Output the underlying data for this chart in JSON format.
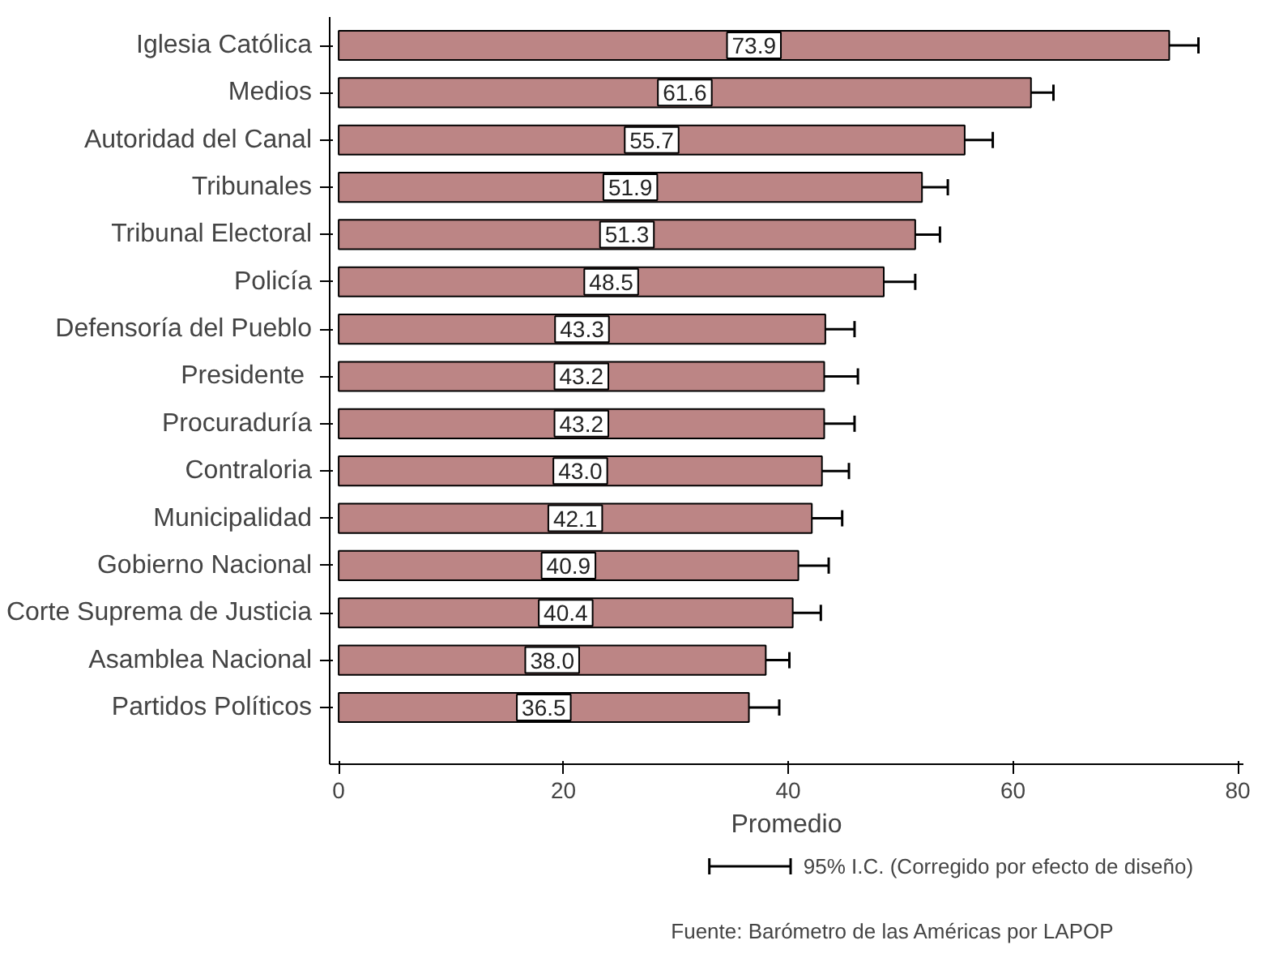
{
  "chart_data": {
    "type": "bar",
    "orientation": "horizontal",
    "xlabel": "Promedio",
    "categories": [
      "Iglesia Católica",
      "Medios",
      "Autoridad del Canal",
      "Tribunales",
      "Tribunal Electoral",
      "Policía",
      "Defensoría del Pueblo",
      "Presidente ",
      "Procuraduría",
      "Contraloria",
      "Municipalidad",
      "Gobierno Nacional",
      "Corte Suprema de Justicia",
      "Asamblea Nacional",
      "Partidos Políticos"
    ],
    "values": [
      73.9,
      61.6,
      55.7,
      51.9,
      51.3,
      48.5,
      43.3,
      43.2,
      43.2,
      43.0,
      42.1,
      40.9,
      40.4,
      38.0,
      36.5
    ],
    "errors": [
      2.6,
      2.0,
      2.5,
      2.3,
      2.2,
      2.8,
      2.6,
      3.0,
      2.7,
      2.4,
      2.7,
      2.7,
      2.5,
      2.1,
      2.7
    ],
    "value_labels": [
      "73.9",
      "61.6",
      "55.7",
      "51.9",
      "51.3",
      "48.5",
      "43.3",
      "43.2",
      "43.2",
      "43.0",
      "42.1",
      "40.9",
      "40.4",
      "38.0",
      "36.5"
    ],
    "color": "#bc8585",
    "grid": false,
    "xlim": [
      -0.8,
      80.5
    ],
    "xticks": [
      0,
      20,
      40,
      60,
      80
    ],
    "annotations": [
      "95% I.C. (Corregido por efecto de diseño)",
      "Fuente: Barómetro de las Américas por LAPOP"
    ]
  }
}
